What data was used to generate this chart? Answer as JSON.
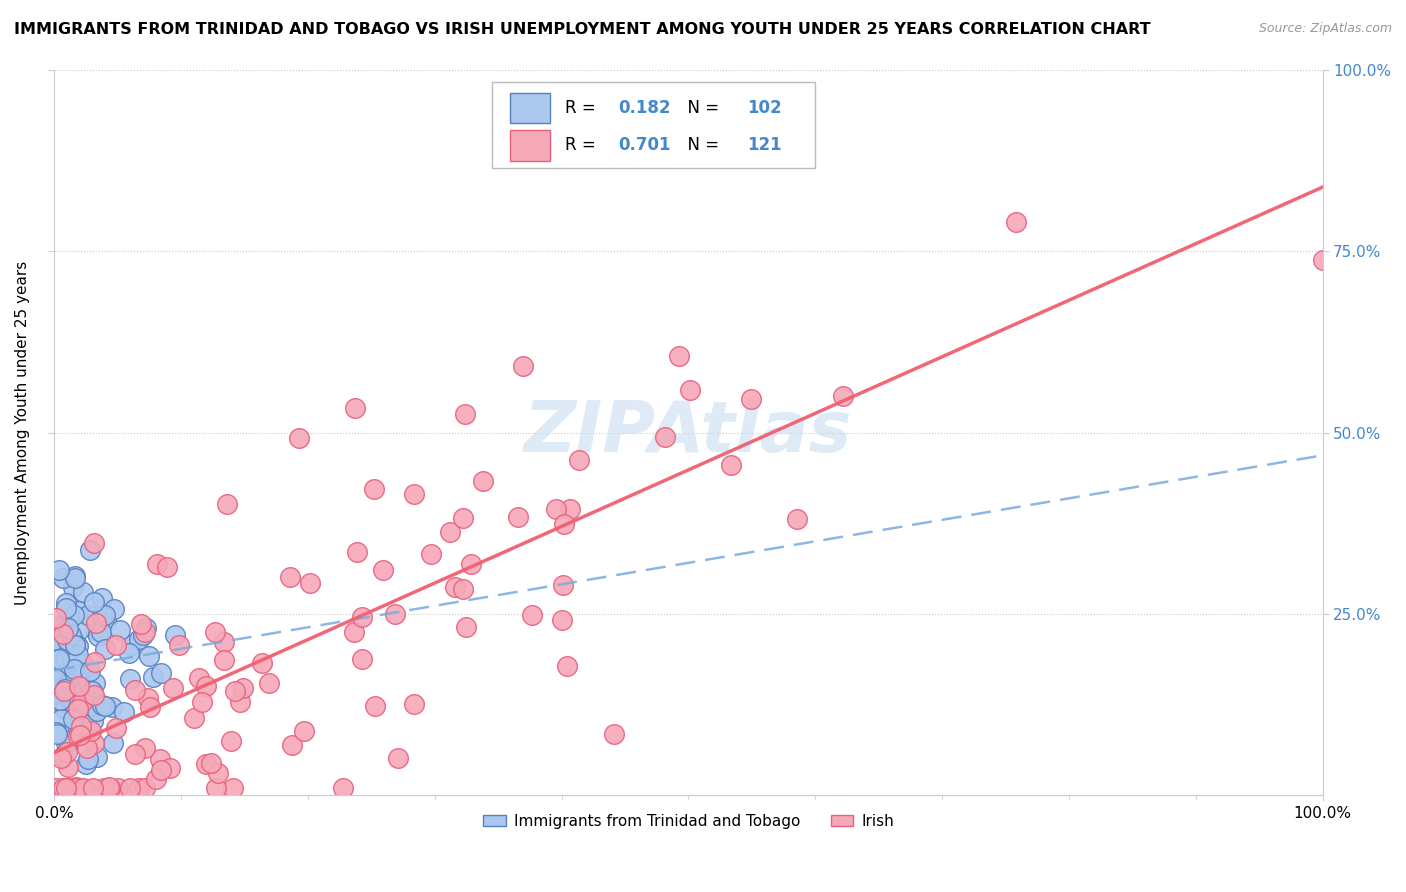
{
  "title": "IMMIGRANTS FROM TRINIDAD AND TOBAGO VS IRISH UNEMPLOYMENT AMONG YOUTH UNDER 25 YEARS CORRELATION CHART",
  "source": "Source: ZipAtlas.com",
  "ylabel": "Unemployment Among Youth under 25 years",
  "ytick_labels": [
    "25.0%",
    "50.0%",
    "75.0%",
    "100.0%"
  ],
  "ytick_values": [
    0.25,
    0.5,
    0.75,
    1.0
  ],
  "legend_blue_R": "0.182",
  "legend_blue_N": "102",
  "legend_pink_R": "0.701",
  "legend_pink_N": "121",
  "blue_color": "#adc8ef",
  "pink_color": "#f5a8b8",
  "blue_edge_color": "#5580c0",
  "pink_edge_color": "#e8607a",
  "blue_line_color": "#7aabdd",
  "pink_line_color": "#f06070",
  "watermark_color": "#c8ddf0",
  "watermark_text": "ZIPAtlas",
  "right_tick_color": "#4488cc",
  "source_color": "#999999"
}
